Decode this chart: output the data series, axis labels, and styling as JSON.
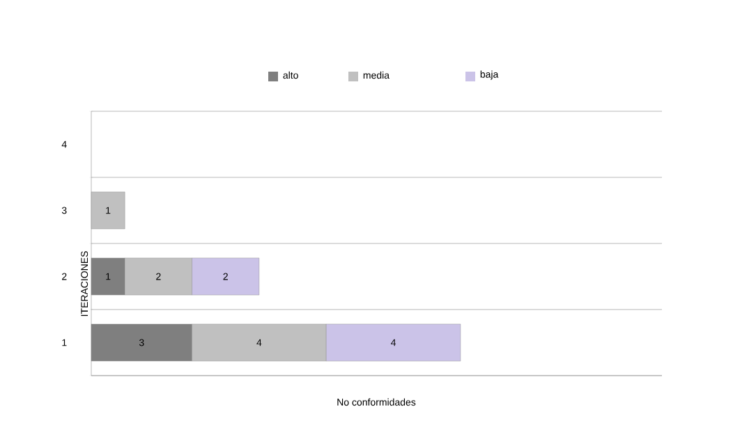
{
  "chart_data": {
    "type": "bar",
    "orientation": "horizontal",
    "stacked": true,
    "categories": [
      "4",
      "3",
      "2",
      "1"
    ],
    "series": [
      {
        "name": "alto",
        "color": "#7f7f7f",
        "values": [
          null,
          null,
          1,
          3
        ]
      },
      {
        "name": "media",
        "color": "#c0c0c0",
        "values": [
          null,
          1,
          2,
          4
        ]
      },
      {
        "name": "baja",
        "color": "#cbc3e8",
        "values": [
          null,
          null,
          2,
          4
        ]
      }
    ],
    "xlim": [
      0,
      17
    ],
    "xlabel": "No conformidades",
    "ylabel": "ITERACIONES",
    "data_labels": true,
    "legend": "top",
    "grid": "y",
    "tick_labels": "y"
  }
}
